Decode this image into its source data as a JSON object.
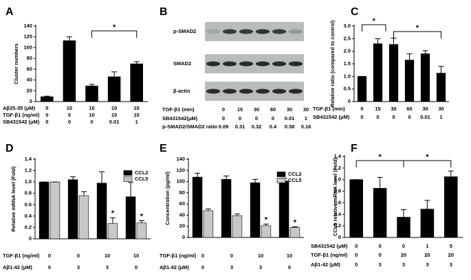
{
  "chart_data": [
    {
      "type": "bar",
      "panel": "A",
      "ylabel": "Cluster numbers",
      "ylim": [
        0,
        140
      ],
      "yticks": [
        0,
        20,
        40,
        60,
        80,
        100,
        120,
        140
      ],
      "color": "#000000",
      "values": [
        9,
        113,
        29,
        46,
        70
      ],
      "errors": [
        1,
        7,
        3,
        9,
        4
      ],
      "conditions": [
        {
          "label": "Aβ25-35 (μM)",
          "values": [
            0,
            10,
            10,
            10,
            10
          ]
        },
        {
          "label": "TGF-β1 (ng/ml)",
          "values": [
            0,
            0,
            10,
            10,
            10
          ]
        },
        {
          "label": "SB431542 (μM)",
          "values": [
            0,
            0,
            0,
            0.01,
            1
          ]
        }
      ],
      "annotations": [
        "*"
      ]
    },
    {
      "type": "blot",
      "panel": "B",
      "blot_labels": [
        "p-SMAD2",
        "SMAD2",
        "β-actin"
      ],
      "conditions": [
        {
          "label": "TGF-β1 (min)",
          "values": [
            0,
            15,
            30,
            60,
            30,
            30
          ]
        },
        {
          "label": "SB431542(μM)",
          "values": [
            0,
            0,
            0,
            0,
            0.01,
            1
          ]
        },
        {
          "label": "p-SMAD2/SMAD2 ratio",
          "values": [
            0.09,
            0.31,
            0.32,
            0.4,
            0.38,
            0.16
          ]
        }
      ]
    },
    {
      "type": "bar",
      "panel": "C",
      "ylabel": "Relative ratio (compared to control)",
      "ylim": [
        0,
        3
      ],
      "yticks": [
        0,
        0.5,
        {
          "value": 1,
          "label": "1.0"
        },
        1.5,
        {
          "value": 2,
          "label": "2.0"
        },
        2.5,
        {
          "value": 3,
          "label": "3.0"
        }
      ],
      "color": "#000000",
      "values": [
        1.0,
        2.3,
        2.27,
        1.65,
        1.9,
        1.13
      ],
      "errors": [
        0,
        0.2,
        0.25,
        0.25,
        0.12,
        0.27
      ],
      "conditions": [
        {
          "label": "TGF-β1 (min)",
          "values": [
            0,
            15,
            30,
            60,
            30,
            30
          ]
        },
        {
          "label": "SB431542 (μM)",
          "values": [
            0,
            0,
            0,
            0,
            0.01,
            1
          ]
        }
      ],
      "annotations": [
        "*",
        "*"
      ]
    },
    {
      "type": "grouped-bar",
      "panel": "D",
      "ylabel": "Relative mRNA level (Fold)",
      "ylim": [
        0,
        1.4
      ],
      "yticks": [
        0,
        0.2,
        0.4,
        0.6,
        0.8,
        {
          "value": 1,
          "label": "1.0"
        },
        1.2,
        1.4
      ],
      "series": [
        {
          "name": "CCL2",
          "color": "#000000",
          "values": [
            1.0,
            1.04,
            0.98,
            0.74
          ],
          "errors": [
            0,
            0.05,
            0.2,
            0.25
          ]
        },
        {
          "name": "CCL5",
          "color": "#c8c8c8",
          "values": [
            1.0,
            0.76,
            0.27,
            0.28
          ],
          "errors": [
            0,
            0.07,
            0.1,
            0.04
          ]
        }
      ],
      "conditions": [
        {
          "label": "TGF-β1 (ng/ml)",
          "values": [
            0,
            0,
            10,
            10
          ]
        },
        {
          "label": "Aβ1-42 (μM)",
          "values": [
            0,
            3,
            3,
            0
          ]
        }
      ],
      "annotations": [
        "*",
        "*"
      ]
    },
    {
      "type": "grouped-bar",
      "panel": "E",
      "ylabel": "Concentration (pg/ml)",
      "ylim": [
        0,
        140
      ],
      "yticks": [
        0,
        20,
        40,
        60,
        80,
        100,
        120,
        140
      ],
      "series": [
        {
          "name": "CCL2",
          "color": "#000000",
          "values": [
            108,
            104,
            98,
            101
          ],
          "errors": [
            7,
            6,
            6,
            5
          ]
        },
        {
          "name": "CCL5",
          "color": "#c8c8c8",
          "values": [
            48,
            39,
            21,
            18
          ],
          "errors": [
            3,
            3,
            3,
            1
          ]
        }
      ],
      "conditions": [
        {
          "label": "TGF-β1 (ng/ml)",
          "values": [
            0,
            0,
            10,
            10
          ]
        },
        {
          "label": "Aβ1-42 (μM)",
          "values": [
            0,
            3,
            3,
            0
          ]
        }
      ],
      "annotations": [
        "*",
        "*"
      ]
    },
    {
      "type": "bar",
      "panel": "F",
      "ylabel": "CCL5 relative mRNA level (Fold)",
      "ylim": [
        0,
        1.4
      ],
      "yticks": [
        0,
        0.2,
        0.4,
        0.6,
        0.8,
        {
          "value": 1,
          "label": "1.0"
        },
        1.2,
        1.4
      ],
      "color": "#000000",
      "values": [
        1.0,
        0.85,
        0.35,
        0.49,
        1.05
      ],
      "errors": [
        0,
        0.19,
        0.13,
        0.15,
        0.1
      ],
      "conditions": [
        {
          "label": "SB431542 (μM)",
          "values": [
            0,
            0,
            0,
            1,
            5
          ]
        },
        {
          "label": "TGF-β1 (ng/ml)",
          "values": [
            0,
            0,
            20,
            20,
            20
          ]
        },
        {
          "label": "Aβ1-42 (μM)",
          "values": [
            0,
            3,
            3,
            3,
            3
          ]
        }
      ],
      "annotations": [
        "*",
        "*"
      ]
    }
  ]
}
